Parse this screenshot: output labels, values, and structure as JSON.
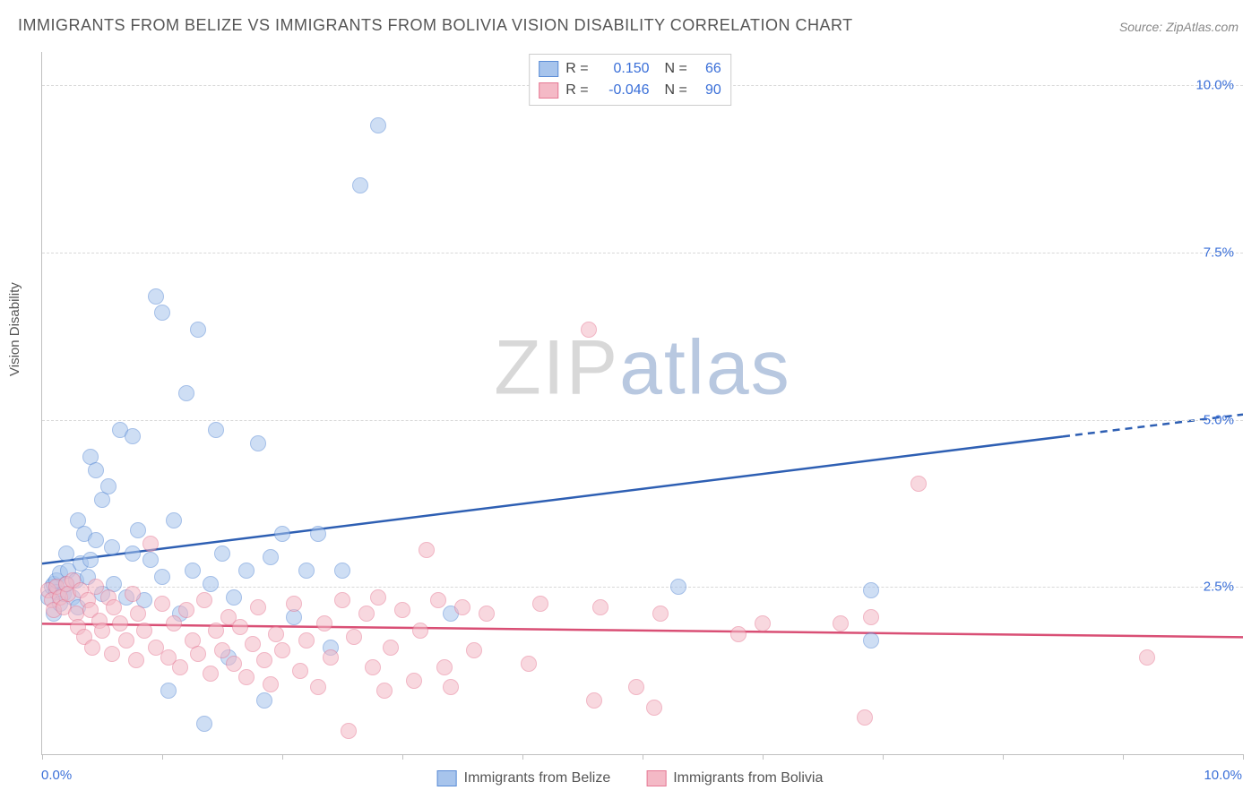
{
  "title": "IMMIGRANTS FROM BELIZE VS IMMIGRANTS FROM BOLIVIA VISION DISABILITY CORRELATION CHART",
  "source": "Source: ZipAtlas.com",
  "ylabel": "Vision Disability",
  "watermark": {
    "part1": "ZIP",
    "part2": "atlas"
  },
  "chart": {
    "type": "scatter",
    "x_range": [
      0.0,
      10.0
    ],
    "y_range": [
      0.0,
      10.5
    ],
    "y_ticks": [
      2.5,
      5.0,
      7.5,
      10.0
    ],
    "y_tick_labels": [
      "2.5%",
      "5.0%",
      "7.5%",
      "10.0%"
    ],
    "x_tick_positions": [
      0,
      1,
      2,
      3,
      4,
      5,
      6,
      7,
      8,
      9,
      10
    ],
    "x_label_min": "0.0%",
    "x_label_max": "10.0%",
    "grid_color": "#d8d8d8",
    "axis_color": "#c0c0c0",
    "background_color": "#ffffff",
    "marker_radius": 8,
    "marker_opacity": 0.55,
    "series": [
      {
        "name": "Immigrants from Belize",
        "fill": "#a7c4ec",
        "stroke": "#5b8cd6",
        "line_color": "#2e5fb3",
        "R": "0.150",
        "N": "66",
        "trend": {
          "x1": 0.0,
          "y1": 2.85,
          "x2_solid": 8.5,
          "y2_solid": 4.75,
          "x2_dash": 10.0,
          "y2_dash": 5.08
        },
        "points": [
          [
            0.05,
            2.35
          ],
          [
            0.08,
            2.5
          ],
          [
            0.1,
            2.1
          ],
          [
            0.1,
            2.55
          ],
          [
            0.12,
            2.42
          ],
          [
            0.12,
            2.6
          ],
          [
            0.15,
            2.7
          ],
          [
            0.15,
            2.25
          ],
          [
            0.18,
            2.4
          ],
          [
            0.2,
            3.0
          ],
          [
            0.2,
            2.55
          ],
          [
            0.22,
            2.75
          ],
          [
            0.25,
            2.35
          ],
          [
            0.28,
            2.6
          ],
          [
            0.3,
            3.5
          ],
          [
            0.3,
            2.2
          ],
          [
            0.32,
            2.85
          ],
          [
            0.35,
            3.3
          ],
          [
            0.38,
            2.65
          ],
          [
            0.4,
            4.45
          ],
          [
            0.4,
            2.9
          ],
          [
            0.45,
            3.2
          ],
          [
            0.45,
            4.25
          ],
          [
            0.5,
            3.8
          ],
          [
            0.5,
            2.4
          ],
          [
            0.55,
            4.0
          ],
          [
            0.58,
            3.1
          ],
          [
            0.6,
            2.55
          ],
          [
            0.65,
            4.85
          ],
          [
            0.7,
            2.35
          ],
          [
            0.75,
            3.0
          ],
          [
            0.75,
            4.75
          ],
          [
            0.8,
            3.35
          ],
          [
            0.85,
            2.3
          ],
          [
            0.9,
            2.9
          ],
          [
            0.95,
            6.85
          ],
          [
            1.0,
            6.6
          ],
          [
            1.0,
            2.65
          ],
          [
            1.05,
            0.95
          ],
          [
            1.1,
            3.5
          ],
          [
            1.15,
            2.1
          ],
          [
            1.2,
            5.4
          ],
          [
            1.25,
            2.75
          ],
          [
            1.3,
            6.35
          ],
          [
            1.35,
            0.45
          ],
          [
            1.4,
            2.55
          ],
          [
            1.45,
            4.85
          ],
          [
            1.5,
            3.0
          ],
          [
            1.55,
            1.45
          ],
          [
            1.6,
            2.35
          ],
          [
            1.7,
            2.75
          ],
          [
            1.8,
            4.65
          ],
          [
            1.85,
            0.8
          ],
          [
            1.9,
            2.95
          ],
          [
            2.0,
            3.3
          ],
          [
            2.1,
            2.05
          ],
          [
            2.2,
            2.75
          ],
          [
            2.3,
            3.3
          ],
          [
            2.4,
            1.6
          ],
          [
            2.5,
            2.75
          ],
          [
            2.65,
            8.5
          ],
          [
            2.8,
            9.4
          ],
          [
            3.4,
            2.1
          ],
          [
            5.3,
            2.5
          ],
          [
            6.9,
            1.7
          ],
          [
            6.9,
            2.45
          ]
        ]
      },
      {
        "name": "Immigrants from Bolivia",
        "fill": "#f4b9c6",
        "stroke": "#e67a95",
        "line_color": "#d94f75",
        "R": "-0.046",
        "N": "90",
        "trend": {
          "x1": 0.0,
          "y1": 1.95,
          "x2_solid": 10.0,
          "y2_solid": 1.75,
          "x2_dash": 10.0,
          "y2_dash": 1.75
        },
        "points": [
          [
            0.05,
            2.45
          ],
          [
            0.08,
            2.3
          ],
          [
            0.1,
            2.15
          ],
          [
            0.12,
            2.5
          ],
          [
            0.15,
            2.35
          ],
          [
            0.18,
            2.2
          ],
          [
            0.2,
            2.55
          ],
          [
            0.22,
            2.4
          ],
          [
            0.25,
            2.6
          ],
          [
            0.28,
            2.1
          ],
          [
            0.3,
            1.9
          ],
          [
            0.32,
            2.45
          ],
          [
            0.35,
            1.75
          ],
          [
            0.38,
            2.3
          ],
          [
            0.4,
            2.15
          ],
          [
            0.42,
            1.6
          ],
          [
            0.45,
            2.5
          ],
          [
            0.48,
            2.0
          ],
          [
            0.5,
            1.85
          ],
          [
            0.55,
            2.35
          ],
          [
            0.58,
            1.5
          ],
          [
            0.6,
            2.2
          ],
          [
            0.65,
            1.95
          ],
          [
            0.7,
            1.7
          ],
          [
            0.75,
            2.4
          ],
          [
            0.78,
            1.4
          ],
          [
            0.8,
            2.1
          ],
          [
            0.85,
            1.85
          ],
          [
            0.9,
            3.15
          ],
          [
            0.95,
            1.6
          ],
          [
            1.0,
            2.25
          ],
          [
            1.05,
            1.45
          ],
          [
            1.1,
            1.95
          ],
          [
            1.15,
            1.3
          ],
          [
            1.2,
            2.15
          ],
          [
            1.25,
            1.7
          ],
          [
            1.3,
            1.5
          ],
          [
            1.35,
            2.3
          ],
          [
            1.4,
            1.2
          ],
          [
            1.45,
            1.85
          ],
          [
            1.5,
            1.55
          ],
          [
            1.55,
            2.05
          ],
          [
            1.6,
            1.35
          ],
          [
            1.65,
            1.9
          ],
          [
            1.7,
            1.15
          ],
          [
            1.75,
            1.65
          ],
          [
            1.8,
            2.2
          ],
          [
            1.85,
            1.4
          ],
          [
            1.9,
            1.05
          ],
          [
            1.95,
            1.8
          ],
          [
            2.0,
            1.55
          ],
          [
            2.1,
            2.25
          ],
          [
            2.15,
            1.25
          ],
          [
            2.2,
            1.7
          ],
          [
            2.3,
            1.0
          ],
          [
            2.35,
            1.95
          ],
          [
            2.4,
            1.45
          ],
          [
            2.5,
            2.3
          ],
          [
            2.55,
            0.35
          ],
          [
            2.6,
            1.75
          ],
          [
            2.7,
            2.1
          ],
          [
            2.75,
            1.3
          ],
          [
            2.8,
            2.35
          ],
          [
            2.85,
            0.95
          ],
          [
            2.9,
            1.6
          ],
          [
            3.0,
            2.15
          ],
          [
            3.1,
            1.1
          ],
          [
            3.15,
            1.85
          ],
          [
            3.2,
            3.05
          ],
          [
            3.3,
            2.3
          ],
          [
            3.35,
            1.3
          ],
          [
            3.4,
            1.0
          ],
          [
            3.5,
            2.2
          ],
          [
            3.6,
            1.55
          ],
          [
            3.7,
            2.1
          ],
          [
            4.05,
            1.35
          ],
          [
            4.15,
            2.25
          ],
          [
            4.55,
            6.35
          ],
          [
            4.6,
            0.8
          ],
          [
            4.65,
            2.2
          ],
          [
            4.95,
            1.0
          ],
          [
            5.1,
            0.7
          ],
          [
            5.15,
            2.1
          ],
          [
            5.8,
            1.8
          ],
          [
            6.0,
            1.95
          ],
          [
            6.65,
            1.95
          ],
          [
            6.85,
            0.55
          ],
          [
            6.9,
            2.05
          ],
          [
            7.3,
            4.05
          ],
          [
            9.2,
            1.45
          ]
        ]
      }
    ]
  },
  "legend_bottom": [
    {
      "label": "Immigrants from Belize",
      "fill": "#a7c4ec",
      "stroke": "#5b8cd6"
    },
    {
      "label": "Immigrants from Bolivia",
      "fill": "#f4b9c6",
      "stroke": "#e67a95"
    }
  ]
}
